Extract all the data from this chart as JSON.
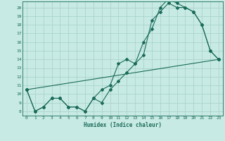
{
  "title": "",
  "xlabel": "Humidex (Indice chaleur)",
  "background_color": "#c8eae4",
  "grid_color": "#a8d4cc",
  "line_color": "#1a6b5a",
  "xlim": [
    -0.5,
    23.5
  ],
  "ylim": [
    7.5,
    20.7
  ],
  "xticks": [
    0,
    1,
    2,
    3,
    4,
    5,
    6,
    7,
    8,
    9,
    10,
    11,
    12,
    13,
    14,
    15,
    16,
    17,
    18,
    19,
    20,
    21,
    22,
    23
  ],
  "yticks": [
    8,
    9,
    10,
    11,
    12,
    13,
    14,
    15,
    16,
    17,
    18,
    19,
    20
  ],
  "series1_x": [
    0,
    1,
    2,
    3,
    4,
    5,
    6,
    7,
    8,
    9,
    10,
    11,
    12,
    13,
    14,
    15,
    16,
    17,
    18,
    19,
    20,
    21,
    22,
    23
  ],
  "series1_y": [
    10.5,
    8.0,
    8.5,
    9.5,
    9.5,
    8.5,
    8.5,
    8.0,
    9.5,
    10.5,
    11.0,
    13.5,
    14.0,
    13.5,
    16.0,
    17.5,
    20.0,
    21.0,
    20.5,
    20.0,
    19.5,
    18.0,
    15.0,
    14.0
  ],
  "series2_x": [
    0,
    1,
    2,
    3,
    4,
    5,
    6,
    7,
    8,
    9,
    10,
    11,
    12,
    13,
    14,
    15,
    16,
    17,
    18,
    19,
    20,
    21,
    22,
    23
  ],
  "series2_y": [
    10.5,
    8.0,
    8.5,
    9.5,
    9.5,
    8.5,
    8.5,
    8.0,
    9.5,
    9.0,
    10.5,
    11.5,
    12.5,
    13.5,
    14.5,
    18.5,
    19.5,
    20.5,
    20.0,
    20.0,
    19.5,
    18.0,
    15.0,
    14.0
  ],
  "series3_x": [
    0,
    23
  ],
  "series3_y": [
    10.5,
    14.0
  ]
}
